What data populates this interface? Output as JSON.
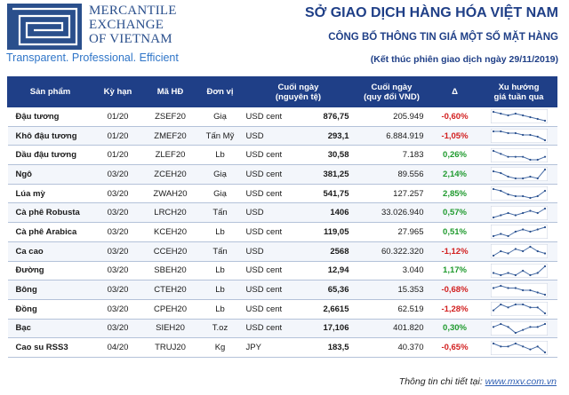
{
  "brand": {
    "logo_lines": [
      "MERCANTILE",
      "EXCHANGE",
      "OF VIETNAM"
    ],
    "tagline": "Transparent. Professional. Efficient"
  },
  "title": {
    "main": "SỞ GIAO DỊCH HÀNG HÓA VIỆT NAM",
    "sub": "CÔNG BỐ THÔNG TIN GIÁ MỘT SỐ MẶT HÀNG",
    "session": "(Kết thúc phiên giao dịch ngày 29/11/2019)"
  },
  "table": {
    "headers": [
      "Sản phẩm",
      "Kỳ hạn",
      "Mã HĐ",
      "Đơn vị",
      "Cuối ngày\n(nguyên tệ)",
      "Cuối ngày\n(quy đổi VND)",
      "Δ",
      "Xu hướng\ngiá tuần qua"
    ],
    "rows": [
      {
        "product": "Đậu tương",
        "term": "01/20",
        "code": "ZSEF20",
        "unit": "Giạ",
        "currency": "USD cent",
        "close": "876,75",
        "vnd": "205.949",
        "change": "-0,60%",
        "trend": [
          7,
          6,
          5,
          6,
          5,
          4,
          3,
          2
        ]
      },
      {
        "product": "Khô đậu tương",
        "term": "01/20",
        "code": "ZMEF20",
        "unit": "Tấn Mỹ",
        "currency": "USD",
        "close": "293,1",
        "vnd": "6.884.919",
        "change": "-1,05%",
        "trend": [
          7,
          7,
          6,
          6,
          5,
          5,
          4,
          2
        ]
      },
      {
        "product": "Dầu đậu tương",
        "term": "01/20",
        "code": "ZLEF20",
        "unit": "Lb",
        "currency": "USD cent",
        "close": "30,58",
        "vnd": "7.183",
        "change": "0,26%",
        "trend": [
          7,
          6,
          5,
          5,
          5,
          4,
          4,
          5
        ]
      },
      {
        "product": "Ngô",
        "term": "03/20",
        "code": "ZCEH20",
        "unit": "Giạ",
        "currency": "USD cent",
        "close": "381,25",
        "vnd": "89.556",
        "change": "2,14%",
        "trend": [
          6,
          5,
          3,
          2,
          2,
          3,
          2,
          7
        ]
      },
      {
        "product": "Lúa mỳ",
        "term": "03/20",
        "code": "ZWAH20",
        "unit": "Giạ",
        "currency": "USD cent",
        "close": "541,75",
        "vnd": "127.257",
        "change": "2,85%",
        "trend": [
          7,
          6,
          4,
          3,
          3,
          2,
          3,
          6
        ]
      },
      {
        "product": "Cà phê Robusta",
        "term": "03/20",
        "code": "LRCH20",
        "unit": "Tấn",
        "currency": "USD",
        "close": "1406",
        "vnd": "33.026.940",
        "change": "0,57%",
        "trend": [
          3,
          4,
          5,
          4,
          5,
          6,
          5,
          7
        ]
      },
      {
        "product": "Cà phê Arabica",
        "term": "03/20",
        "code": "KCEH20",
        "unit": "Lb",
        "currency": "USD cent",
        "close": "119,05",
        "vnd": "27.965",
        "change": "0,51%",
        "trend": [
          3,
          4,
          3,
          5,
          6,
          5,
          6,
          7
        ]
      },
      {
        "product": "Ca cao",
        "term": "03/20",
        "code": "CCEH20",
        "unit": "Tấn",
        "currency": "USD",
        "close": "2568",
        "vnd": "60.322.320",
        "change": "-1,12%",
        "trend": [
          3,
          5,
          4,
          6,
          5,
          7,
          5,
          4
        ]
      },
      {
        "product": "Đường",
        "term": "03/20",
        "code": "SBEH20",
        "unit": "Lb",
        "currency": "USD cent",
        "close": "12,94",
        "vnd": "3.040",
        "change": "1,17%",
        "trend": [
          4,
          3,
          4,
          3,
          5,
          3,
          4,
          7
        ]
      },
      {
        "product": "Bông",
        "term": "03/20",
        "code": "CTEH20",
        "unit": "Lb",
        "currency": "USD cent",
        "close": "65,36",
        "vnd": "15.353",
        "change": "-0,68%",
        "trend": [
          6,
          7,
          6,
          6,
          5,
          5,
          4,
          3
        ]
      },
      {
        "product": "Đồng",
        "term": "03/20",
        "code": "CPEH20",
        "unit": "Lb",
        "currency": "USD cent",
        "close": "2,6615",
        "vnd": "62.519",
        "change": "-1,28%",
        "trend": [
          4,
          6,
          5,
          6,
          6,
          5,
          5,
          3
        ]
      },
      {
        "product": "Bạc",
        "term": "03/20",
        "code": "SIEH20",
        "unit": "T.oz",
        "currency": "USD cent",
        "close": "17,106",
        "vnd": "401.820",
        "change": "0,30%",
        "trend": [
          5,
          6,
          5,
          3,
          4,
          5,
          5,
          6
        ]
      },
      {
        "product": "Cao su RSS3",
        "term": "04/20",
        "code": "TRUJ20",
        "unit": "Kg",
        "currency": "JPY",
        "close": "183,5",
        "vnd": "40.370",
        "change": "-0,65%",
        "trend": [
          6,
          5,
          5,
          6,
          5,
          4,
          5,
          3
        ]
      }
    ]
  },
  "footer": {
    "label": "Thông tin chi tiết tại: ",
    "link": "www.mxv.com.vn"
  },
  "colors": {
    "brand_blue": "#1f3f87",
    "negative": "#d21f1f",
    "positive": "#1f9a2e"
  }
}
